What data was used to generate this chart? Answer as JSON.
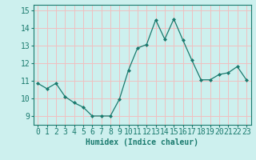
{
  "x": [
    0,
    1,
    2,
    3,
    4,
    5,
    6,
    7,
    8,
    9,
    10,
    11,
    12,
    13,
    14,
    15,
    16,
    17,
    18,
    19,
    20,
    21,
    22,
    23
  ],
  "y": [
    10.85,
    10.55,
    10.85,
    10.1,
    9.75,
    9.5,
    9.0,
    9.0,
    9.0,
    9.95,
    11.6,
    12.85,
    13.05,
    14.45,
    13.35,
    14.5,
    13.3,
    12.15,
    11.05,
    11.05,
    11.35,
    11.45,
    11.8,
    11.05
  ],
  "line_color": "#1a7a6e",
  "marker": "D",
  "marker_size": 2.0,
  "bg_color": "#cdf0ee",
  "grid_color": "#f0c0c0",
  "xlabel": "Humidex (Indice chaleur)",
  "xlabel_fontsize": 7,
  "tick_fontsize": 7,
  "ylim": [
    8.5,
    15.3
  ],
  "xlim": [
    -0.5,
    23.5
  ],
  "yticks": [
    9,
    10,
    11,
    12,
    13,
    14,
    15
  ],
  "xticks": [
    0,
    1,
    2,
    3,
    4,
    5,
    6,
    7,
    8,
    9,
    10,
    11,
    12,
    13,
    14,
    15,
    16,
    17,
    18,
    19,
    20,
    21,
    22,
    23
  ]
}
